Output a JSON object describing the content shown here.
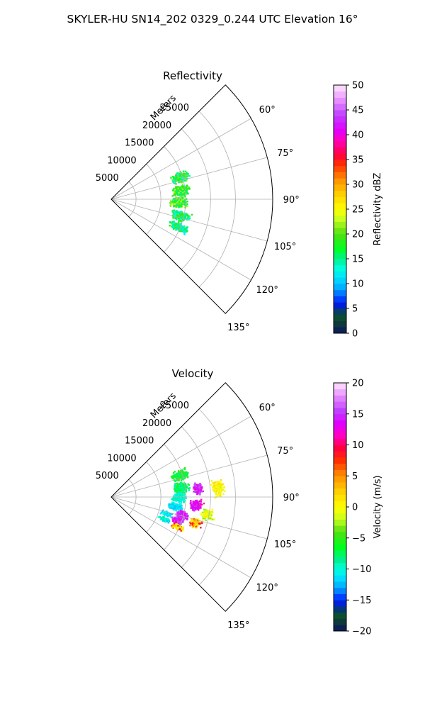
{
  "figure": {
    "suptitle": "SKYLER-HU  SN14_202  0329_0.244 UTC Elevation 16°"
  },
  "chart_data": [
    {
      "type": "polar-sector",
      "title": "Reflectivity",
      "radial_axis_label": "Meters",
      "radial_ticks": [
        5000,
        10000,
        15000,
        20000,
        25000
      ],
      "radial_tick_labels": [
        "5000",
        "10000",
        "15000",
        "20000",
        "25000"
      ],
      "rlim": [
        0,
        32500
      ],
      "theta_range_deg": [
        45,
        135
      ],
      "theta_ticks": [
        60,
        75,
        90,
        105,
        120,
        135
      ],
      "theta_tick_labels": [
        "60°",
        "75°",
        "90°",
        "105°",
        "120°",
        "135°"
      ],
      "grid": true,
      "colorbar": {
        "label": "Reflectivity dBZ",
        "min": 0,
        "max": 50,
        "ticks": [
          0,
          5,
          10,
          15,
          20,
          25,
          30,
          35,
          40,
          45,
          50
        ],
        "tick_labels": [
          "0",
          "5",
          "10",
          "15",
          "20",
          "25",
          "30",
          "35",
          "40",
          "45",
          "50"
        ],
        "stops": [
          {
            "v": 0,
            "c": "#0b1560"
          },
          {
            "v": 2,
            "c": "#0f3a3a"
          },
          {
            "v": 4,
            "c": "#0a5a2a"
          },
          {
            "v": 5,
            "c": "#0010c8"
          },
          {
            "v": 7,
            "c": "#0040ff"
          },
          {
            "v": 9,
            "c": "#00a8ff"
          },
          {
            "v": 11,
            "c": "#00ddff"
          },
          {
            "v": 13,
            "c": "#00ffe0"
          },
          {
            "v": 15,
            "c": "#00f090"
          },
          {
            "v": 17,
            "c": "#00ff20"
          },
          {
            "v": 20,
            "c": "#50e010"
          },
          {
            "v": 23,
            "c": "#c8ff20"
          },
          {
            "v": 25,
            "c": "#ffff00"
          },
          {
            "v": 28,
            "c": "#ffd000"
          },
          {
            "v": 31,
            "c": "#ff9000"
          },
          {
            "v": 34,
            "c": "#ff3000"
          },
          {
            "v": 36,
            "c": "#ff0040"
          },
          {
            "v": 39,
            "c": "#ff00c0"
          },
          {
            "v": 41,
            "c": "#e000ff"
          },
          {
            "v": 44,
            "c": "#c040ff"
          },
          {
            "v": 47,
            "c": "#e890ff"
          },
          {
            "v": 50,
            "c": "#ffe8ff"
          }
        ]
      },
      "echo_clusters": [
        {
          "theta": 72,
          "r": 14500,
          "dr": 2200,
          "dtheta": 5,
          "values": [
            13,
            15,
            17,
            20,
            21
          ],
          "n": 260
        },
        {
          "theta": 82,
          "r": 14000,
          "dr": 2200,
          "dtheta": 6,
          "values": [
            15,
            17,
            19,
            20,
            22
          ],
          "n": 260
        },
        {
          "theta": 92,
          "r": 13500,
          "dr": 2000,
          "dtheta": 6,
          "values": [
            15,
            17,
            20,
            21,
            23
          ],
          "n": 260
        },
        {
          "theta": 103,
          "r": 14200,
          "dr": 2400,
          "dtheta": 5,
          "values": [
            13,
            15,
            17,
            20
          ],
          "n": 230
        },
        {
          "theta": 112,
          "r": 14500,
          "dr": 2500,
          "dtheta": 4,
          "values": [
            12,
            14,
            16,
            19
          ],
          "n": 220
        }
      ]
    },
    {
      "type": "polar-sector",
      "title": "Velocity",
      "radial_axis_label": "Meters",
      "radial_ticks": [
        5000,
        10000,
        15000,
        20000,
        25000
      ],
      "radial_tick_labels": [
        "5000",
        "10000",
        "15000",
        "20000",
        "25000"
      ],
      "rlim": [
        0,
        32500
      ],
      "theta_range_deg": [
        45,
        135
      ],
      "theta_ticks": [
        60,
        75,
        90,
        105,
        120,
        135
      ],
      "theta_tick_labels": [
        "60°",
        "75°",
        "90°",
        "105°",
        "120°",
        "135°"
      ],
      "grid": true,
      "colorbar": {
        "label": "Velocity (m/s)",
        "min": -20,
        "max": 20,
        "ticks": [
          -20,
          -15,
          -10,
          -5,
          0,
          5,
          10,
          15,
          20
        ],
        "tick_labels": [
          "−20",
          "−15",
          "−10",
          "−5",
          "0",
          "5",
          "10",
          "15",
          "20"
        ],
        "stops": [
          {
            "v": -20,
            "c": "#0b1560"
          },
          {
            "v": -18.5,
            "c": "#0f3a3a"
          },
          {
            "v": -17,
            "c": "#0a5a2a"
          },
          {
            "v": -16,
            "c": "#0010c8"
          },
          {
            "v": -14.5,
            "c": "#0040ff"
          },
          {
            "v": -13,
            "c": "#00a8ff"
          },
          {
            "v": -11.5,
            "c": "#00ddff"
          },
          {
            "v": -10,
            "c": "#00ffe0"
          },
          {
            "v": -8.5,
            "c": "#00f090"
          },
          {
            "v": -6.5,
            "c": "#00ff20"
          },
          {
            "v": -4,
            "c": "#50e010"
          },
          {
            "v": -2,
            "c": "#c8ff20"
          },
          {
            "v": 0,
            "c": "#ffff00"
          },
          {
            "v": 2.5,
            "c": "#ffd000"
          },
          {
            "v": 5,
            "c": "#ff9000"
          },
          {
            "v": 7.5,
            "c": "#ff3000"
          },
          {
            "v": 9.5,
            "c": "#ff0040"
          },
          {
            "v": 11.5,
            "c": "#ff00c0"
          },
          {
            "v": 13.5,
            "c": "#e000ff"
          },
          {
            "v": 15.5,
            "c": "#c040ff"
          },
          {
            "v": 18,
            "c": "#e890ff"
          },
          {
            "v": 20,
            "c": "#ffe8ff"
          }
        ]
      },
      "echo_clusters": [
        {
          "theta": 72,
          "r": 14500,
          "dr": 2400,
          "dtheta": 5,
          "values": [
            -8,
            -7,
            -6,
            -5,
            -4
          ],
          "n": 240
        },
        {
          "theta": 82,
          "r": 14000,
          "dr": 2000,
          "dtheta": 6,
          "values": [
            -9,
            -8,
            -7,
            -6
          ],
          "n": 220
        },
        {
          "theta": 90,
          "r": 13500,
          "dr": 1800,
          "dtheta": 5,
          "values": [
            -11,
            -10,
            -9
          ],
          "n": 200
        },
        {
          "theta": 98,
          "r": 13000,
          "dr": 1800,
          "dtheta": 4,
          "values": [
            -11,
            -10,
            -12
          ],
          "n": 150
        },
        {
          "theta": 84,
          "r": 17500,
          "dr": 1500,
          "dtheta": 5,
          "values": [
            12,
            14,
            15,
            16
          ],
          "n": 140
        },
        {
          "theta": 95,
          "r": 17000,
          "dr": 1600,
          "dtheta": 5,
          "values": [
            11,
            13,
            14,
            15
          ],
          "n": 150
        },
        {
          "theta": 85,
          "r": 21500,
          "dr": 1600,
          "dtheta": 6,
          "values": [
            -1,
            0,
            1,
            2
          ],
          "n": 120
        },
        {
          "theta": 100,
          "r": 19500,
          "dr": 1600,
          "dtheta": 5,
          "values": [
            -3,
            -2,
            0,
            1
          ],
          "n": 110
        },
        {
          "theta": 104,
          "r": 14500,
          "dr": 1400,
          "dtheta": 4,
          "values": [
            13,
            14,
            15,
            17
          ],
          "n": 160
        },
        {
          "theta": 109,
          "r": 14000,
          "dr": 1500,
          "dtheta": 4,
          "values": [
            14,
            15,
            16,
            12
          ],
          "n": 170
        },
        {
          "theta": 107,
          "r": 17500,
          "dr": 1500,
          "dtheta": 4,
          "values": [
            0,
            1,
            3,
            6,
            9
          ],
          "n": 150
        },
        {
          "theta": 114,
          "r": 14500,
          "dr": 1800,
          "dtheta": 3,
          "values": [
            0,
            2,
            4,
            8
          ],
          "n": 120
        },
        {
          "theta": 106,
          "r": 11500,
          "dr": 1400,
          "dtheta": 3,
          "values": [
            -11,
            -10,
            -12
          ],
          "n": 100
        },
        {
          "theta": 112,
          "r": 11500,
          "dr": 1500,
          "dtheta": 3,
          "values": [
            -12,
            -10,
            -9
          ],
          "n": 80
        }
      ]
    }
  ]
}
